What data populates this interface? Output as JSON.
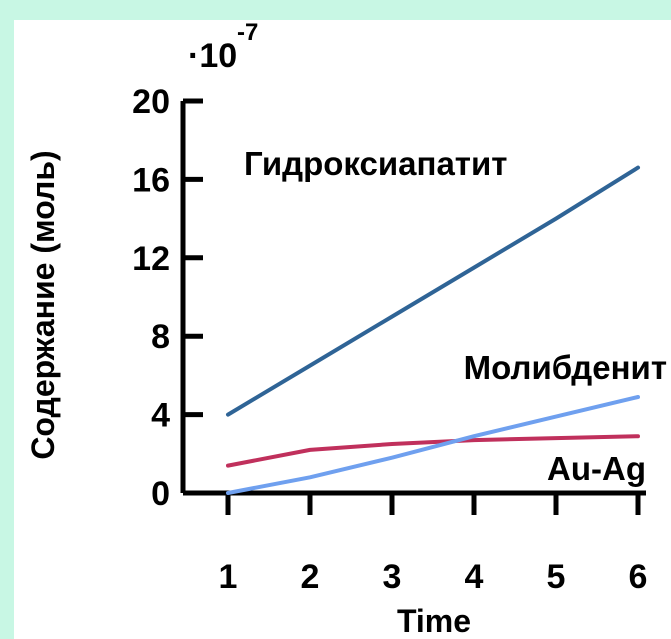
{
  "chart_data": {
    "type": "line",
    "xlabel": "Time",
    "ylabel": "Содержание (моль)",
    "y_multiplier": {
      "base": "·10",
      "exponent": "-7"
    },
    "x_ticks": [
      "1",
      "2",
      "3",
      "4",
      "5",
      "6"
    ],
    "y_ticks": [
      "0",
      "4",
      "8",
      "12",
      "16",
      "20"
    ],
    "xlim": [
      1,
      6
    ],
    "ylim": [
      0,
      20
    ],
    "grid": false,
    "legend": "inline labels",
    "series": [
      {
        "name": "Гидроксиапатит",
        "color": "#2f6496",
        "x": [
          1,
          2,
          3,
          4,
          5,
          6
        ],
        "y": [
          4.0,
          6.5,
          9.0,
          11.5,
          14.0,
          16.6
        ]
      },
      {
        "name": "Молибденит",
        "color": "#6fa0ef",
        "x": [
          1,
          2,
          3,
          4,
          5,
          6
        ],
        "y": [
          0.0,
          0.8,
          1.8,
          2.9,
          3.9,
          4.9
        ]
      },
      {
        "name": "Au-Ag",
        "color": "#c0305c",
        "x": [
          1,
          2,
          3,
          4,
          5,
          6
        ],
        "y": [
          1.4,
          2.2,
          2.5,
          2.7,
          2.8,
          2.9
        ]
      }
    ]
  }
}
